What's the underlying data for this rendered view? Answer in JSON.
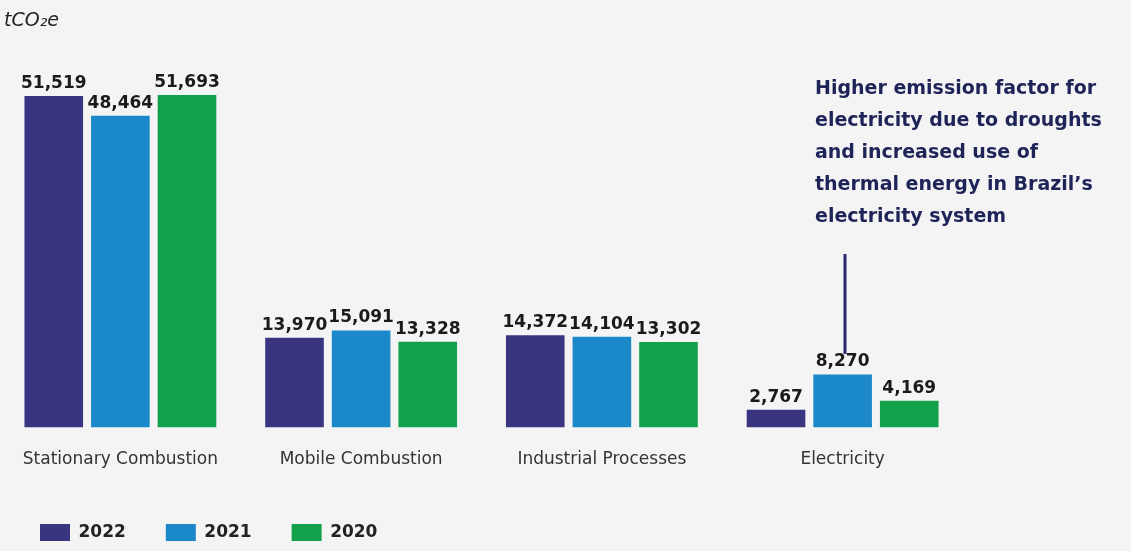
{
  "chart_data": {
    "type": "bar",
    "ylabel": "tCO₂e",
    "categories": [
      "Stationary Combustion",
      "Mobile Combustion",
      "Industrial Processes",
      "Electricity"
    ],
    "series": [
      {
        "name": "2022",
        "color": "#3a3580",
        "values": [
          51519,
          13970,
          14372,
          2767
        ],
        "value_labels": [
          "51,519",
          "13,970",
          "14,372",
          "2,767"
        ]
      },
      {
        "name": "2021",
        "color": "#1a88c9",
        "values": [
          48464,
          15091,
          14104,
          8270
        ],
        "value_labels": [
          "48,464",
          "15,091",
          "14,104",
          "8,270"
        ]
      },
      {
        "name": "2020",
        "color": "#12a04a",
        "values": [
          51693,
          13328,
          13302,
          4169
        ],
        "value_labels": [
          "51,693",
          "13,328",
          "13,302",
          "4,169"
        ]
      }
    ],
    "legend": "bottom left",
    "tick_labels": "x",
    "annotations": [
      "Higher emission factor for electricity due to droughts and increased use of thermal energy in Brazil’s electricity system"
    ]
  }
}
